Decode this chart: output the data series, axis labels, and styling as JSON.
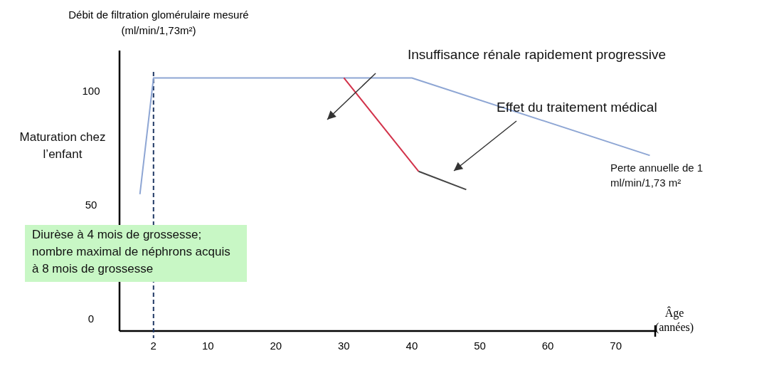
{
  "chart_data": {
    "type": "line",
    "ylabel": "Débit de filtration glomérulaire mesuré (ml/min/1,73m²)",
    "xlabel": "Âge (années)",
    "xlim": [
      -3,
      76
    ],
    "xticks": [
      2,
      10,
      20,
      30,
      40,
      50,
      60,
      70
    ],
    "ylim": [
      -5,
      118
    ],
    "yticks": [
      0,
      50,
      100
    ],
    "grid": false,
    "marker": "none",
    "line_style": "solid",
    "series": [
      {
        "color": "#8ea6d4",
        "x": [
          0,
          2,
          40,
          75
        ],
        "values": [
          55,
          106,
          106,
          72
        ]
      },
      {
        "color": "#d2324a",
        "x": [
          30,
          41
        ],
        "values": [
          106,
          65
        ]
      },
      {
        "color": "#444444",
        "x": [
          41,
          48
        ],
        "values": [
          65,
          57
        ]
      }
    ],
    "ref_lines": [
      {
        "axis": "x",
        "value": 2,
        "color": "#1f3864",
        "line_style": "dashed"
      }
    ],
    "annotations": [
      "Maturation chez l’enfant",
      "Insuffisance rénale rapidement progressive",
      "Effet du traitement médical",
      "Perte annuelle de 1 ml/min/1,73 m²",
      "Diurèse à 4 mois de grossesse; nombre maximal de néphrons acquis à 8 mois de grossesse"
    ]
  }
}
